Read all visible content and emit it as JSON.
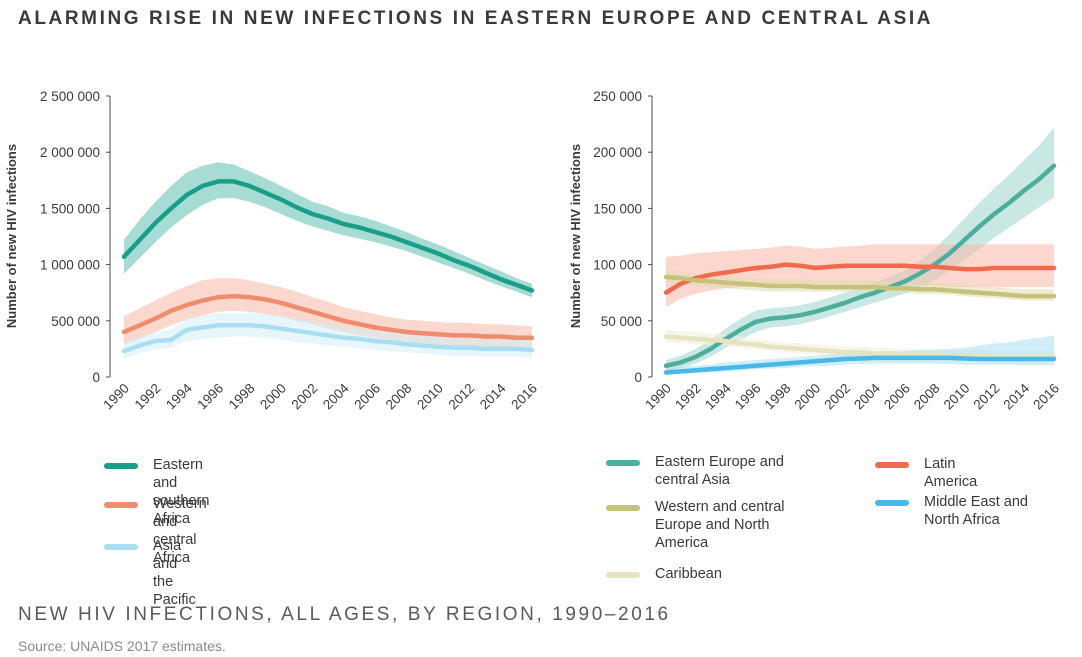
{
  "header": {
    "title": "ALARMING RISE IN NEW INFECTIONS IN EASTERN EUROPE AND CENTRAL ASIA"
  },
  "footer": {
    "subtitle": "NEW HIV INFECTIONS, ALL AGES, BY REGION, 1990–2016",
    "source": "Source: UNAIDS 2017 estimates."
  },
  "chart_data": [
    {
      "type": "line",
      "ylabel": "Number of new HIV infections",
      "ylim": [
        0,
        2500000
      ],
      "yticks": [
        0,
        500000,
        1000000,
        1500000,
        2000000,
        2500000
      ],
      "ytick_labels": [
        "0",
        "500 000",
        "1 000 000",
        "1 500 000",
        "2 000 000",
        "2 500 000"
      ],
      "x": [
        1990,
        1991,
        1992,
        1993,
        1994,
        1995,
        1996,
        1997,
        1998,
        1999,
        2000,
        2001,
        2002,
        2003,
        2004,
        2005,
        2006,
        2007,
        2008,
        2009,
        2010,
        2011,
        2012,
        2013,
        2014,
        2015,
        2016
      ],
      "xticks": [
        1990,
        1992,
        1994,
        1996,
        1998,
        2000,
        2002,
        2004,
        2006,
        2008,
        2010,
        2012,
        2014,
        2016
      ],
      "xtick_labels": [
        "1990",
        "1992",
        "1994",
        "1996",
        "1998",
        "2000",
        "2002",
        "2004",
        "2006",
        "2008",
        "2010",
        "2012",
        "2014",
        "2016"
      ],
      "series": [
        {
          "name": "Eastern and southern Africa",
          "color": "#1a9e8a",
          "band_color": "#5cc0b0",
          "values": [
            1070000,
            1220000,
            1370000,
            1500000,
            1620000,
            1700000,
            1740000,
            1740000,
            1700000,
            1640000,
            1580000,
            1510000,
            1450000,
            1410000,
            1360000,
            1330000,
            1290000,
            1250000,
            1200000,
            1150000,
            1100000,
            1040000,
            990000,
            930000,
            870000,
            820000,
            770000
          ],
          "lower": [
            920000,
            1060000,
            1200000,
            1330000,
            1440000,
            1530000,
            1590000,
            1590000,
            1560000,
            1510000,
            1450000,
            1390000,
            1340000,
            1300000,
            1260000,
            1230000,
            1200000,
            1160000,
            1120000,
            1070000,
            1020000,
            970000,
            920000,
            860000,
            810000,
            760000,
            710000
          ],
          "upper": [
            1220000,
            1400000,
            1560000,
            1700000,
            1820000,
            1880000,
            1910000,
            1890000,
            1830000,
            1770000,
            1700000,
            1630000,
            1560000,
            1520000,
            1460000,
            1430000,
            1390000,
            1340000,
            1290000,
            1230000,
            1180000,
            1120000,
            1060000,
            1000000,
            940000,
            880000,
            830000
          ]
        },
        {
          "name": "Western and central Africa",
          "color": "#f08c6e",
          "band_color": "#f7b8a4",
          "values": [
            400000,
            460000,
            520000,
            590000,
            640000,
            680000,
            710000,
            720000,
            710000,
            690000,
            660000,
            620000,
            580000,
            540000,
            500000,
            470000,
            440000,
            420000,
            400000,
            390000,
            380000,
            370000,
            370000,
            360000,
            360000,
            350000,
            350000
          ],
          "lower": [
            290000,
            340000,
            400000,
            460000,
            510000,
            550000,
            580000,
            590000,
            580000,
            560000,
            540000,
            500000,
            470000,
            430000,
            400000,
            370000,
            350000,
            330000,
            310000,
            300000,
            290000,
            280000,
            270000,
            260000,
            260000,
            250000,
            240000
          ],
          "upper": [
            540000,
            610000,
            680000,
            750000,
            810000,
            860000,
            880000,
            880000,
            860000,
            830000,
            800000,
            760000,
            710000,
            670000,
            620000,
            590000,
            560000,
            530000,
            510000,
            500000,
            490000,
            480000,
            480000,
            470000,
            470000,
            460000,
            450000
          ]
        },
        {
          "name": "Asia and the Pacific",
          "color": "#a9def2",
          "band_color": "#d2eef8",
          "values": [
            230000,
            280000,
            320000,
            330000,
            420000,
            440000,
            460000,
            460000,
            460000,
            450000,
            430000,
            410000,
            390000,
            370000,
            350000,
            340000,
            320000,
            310000,
            290000,
            280000,
            270000,
            260000,
            260000,
            250000,
            250000,
            250000,
            240000
          ],
          "lower": [
            160000,
            210000,
            250000,
            260000,
            320000,
            340000,
            350000,
            360000,
            360000,
            350000,
            330000,
            310000,
            300000,
            280000,
            270000,
            250000,
            240000,
            230000,
            220000,
            210000,
            200000,
            190000,
            190000,
            180000,
            180000,
            180000,
            170000
          ],
          "upper": [
            310000,
            360000,
            400000,
            420000,
            520000,
            550000,
            570000,
            570000,
            570000,
            560000,
            540000,
            520000,
            500000,
            470000,
            450000,
            430000,
            410000,
            400000,
            380000,
            370000,
            360000,
            350000,
            340000,
            340000,
            330000,
            330000,
            320000
          ]
        }
      ]
    },
    {
      "type": "line",
      "ylabel": "Number of new HIV infections",
      "ylim": [
        0,
        250000
      ],
      "yticks": [
        0,
        50000,
        100000,
        150000,
        200000,
        250000
      ],
      "ytick_labels": [
        "0",
        "50 000",
        "100 000",
        "150 000",
        "200 000",
        "250 000"
      ],
      "x": [
        1990,
        1991,
        1992,
        1993,
        1994,
        1995,
        1996,
        1997,
        1998,
        1999,
        2000,
        2001,
        2002,
        2003,
        2004,
        2005,
        2006,
        2007,
        2008,
        2009,
        2010,
        2011,
        2012,
        2013,
        2014,
        2015,
        2016
      ],
      "xticks": [
        1990,
        1992,
        1994,
        1996,
        1998,
        2000,
        2002,
        2004,
        2006,
        2008,
        2010,
        2012,
        2014,
        2016
      ],
      "xtick_labels": [
        "1990",
        "1992",
        "1994",
        "1996",
        "1998",
        "2000",
        "2002",
        "2004",
        "2006",
        "2008",
        "2010",
        "2012",
        "2014",
        "2016"
      ],
      "series": [
        {
          "name": "Eastern Europe and central Asia",
          "color": "#4eae9e",
          "band_color": "#9fd6cc",
          "values": [
            10000,
            13000,
            18000,
            25000,
            34000,
            42000,
            49000,
            52000,
            53000,
            55000,
            58000,
            62000,
            66000,
            71000,
            75000,
            80000,
            85000,
            92000,
            100000,
            110000,
            122000,
            134000,
            145000,
            155000,
            166000,
            176000,
            188000
          ],
          "lower": [
            6000,
            8000,
            12000,
            18000,
            26000,
            33000,
            40000,
            44000,
            45000,
            47000,
            50000,
            54000,
            58000,
            62000,
            66000,
            70000,
            74000,
            80000,
            86000,
            94000,
            104000,
            114000,
            124000,
            133000,
            142000,
            151000,
            160000
          ],
          "upper": [
            15000,
            19000,
            25000,
            33000,
            43000,
            52000,
            59000,
            61000,
            62000,
            64000,
            67000,
            71000,
            75000,
            80000,
            84000,
            89000,
            95000,
            103000,
            114000,
            127000,
            141000,
            155000,
            168000,
            180000,
            193000,
            206000,
            222000
          ]
        },
        {
          "name": "Latin America",
          "color": "#f26a4c",
          "band_color": "#f9b7a7",
          "values": [
            75000,
            83000,
            88000,
            91000,
            93000,
            95000,
            97000,
            98000,
            100000,
            99000,
            97000,
            98000,
            99000,
            99000,
            99000,
            99000,
            99000,
            98000,
            98000,
            97000,
            96000,
            96000,
            97000,
            97000,
            97000,
            97000,
            97000
          ],
          "lower": [
            62000,
            70000,
            74000,
            77000,
            79000,
            80000,
            81000,
            82000,
            83000,
            82000,
            81000,
            81000,
            82000,
            82000,
            82000,
            82000,
            82000,
            81000,
            81000,
            80000,
            80000,
            80000,
            80000,
            80000,
            80000,
            80000,
            80000
          ],
          "upper": [
            107000,
            108000,
            110000,
            111000,
            112000,
            113000,
            114000,
            115000,
            117000,
            116000,
            114000,
            115000,
            116000,
            117000,
            118000,
            118000,
            118000,
            118000,
            118000,
            118000,
            118000,
            118000,
            118000,
            118000,
            118000,
            118000,
            118000
          ]
        },
        {
          "name": "Western and central Europe and North America",
          "color": "#c6c27a",
          "band_color": "#e0ddb0",
          "values": [
            89000,
            88000,
            86000,
            85000,
            84000,
            83000,
            82000,
            81000,
            81000,
            81000,
            80000,
            80000,
            80000,
            80000,
            80000,
            79000,
            79000,
            78000,
            78000,
            77000,
            76000,
            75000,
            74000,
            73000,
            72000,
            72000,
            72000
          ],
          "lower": [
            84000,
            83000,
            81000,
            80000,
            79000,
            78000,
            77000,
            76000,
            76000,
            76000,
            76000,
            76000,
            76000,
            76000,
            76000,
            75000,
            75000,
            74000,
            74000,
            73000,
            72000,
            71000,
            70000,
            69000,
            68000,
            68000,
            68000
          ],
          "upper": [
            95000,
            94000,
            92000,
            91000,
            90000,
            89000,
            88000,
            87000,
            87000,
            87000,
            86000,
            86000,
            86000,
            86000,
            86000,
            85000,
            85000,
            84000,
            84000,
            83000,
            82000,
            81000,
            80000,
            79000,
            78000,
            78000,
            78000
          ]
        },
        {
          "name": "Caribbean",
          "color": "#e6e3bf",
          "band_color": "#f1efd9",
          "values": [
            36000,
            35000,
            34000,
            33000,
            32000,
            30000,
            29000,
            27000,
            26000,
            25000,
            24000,
            23000,
            22000,
            22000,
            21000,
            21000,
            20000,
            20000,
            20000,
            19000,
            19000,
            19000,
            18000,
            18000,
            18000,
            18000,
            18000
          ],
          "lower": [
            31000,
            30000,
            29000,
            28000,
            27000,
            26000,
            25000,
            23000,
            22000,
            21000,
            20000,
            19000,
            18000,
            18000,
            17000,
            17000,
            16000,
            16000,
            16000,
            15000,
            15000,
            15000,
            14000,
            14000,
            14000,
            14000,
            14000
          ],
          "upper": [
            42000,
            41000,
            40000,
            39000,
            38000,
            36000,
            34000,
            32000,
            31000,
            30000,
            29000,
            28000,
            27000,
            27000,
            26000,
            26000,
            25000,
            25000,
            25000,
            24000,
            24000,
            24000,
            23000,
            23000,
            23000,
            23000,
            23000
          ]
        },
        {
          "name": "Middle East and North Africa",
          "color": "#4ab8e6",
          "band_color": "#a9def2",
          "values": [
            4000,
            5000,
            6000,
            7000,
            8000,
            9000,
            10000,
            11000,
            12000,
            13000,
            14000,
            15000,
            16000,
            16500,
            17000,
            17000,
            17000,
            17000,
            17000,
            17000,
            16500,
            16000,
            16000,
            16000,
            16000,
            16000,
            16000
          ],
          "lower": [
            2000,
            3000,
            3500,
            4000,
            5000,
            6000,
            7000,
            7500,
            8000,
            9000,
            9500,
            10000,
            11000,
            11500,
            12000,
            12000,
            12000,
            12000,
            12000,
            11500,
            11000,
            11000,
            11000,
            11000,
            10500,
            10500,
            10500
          ],
          "upper": [
            8000,
            9000,
            10000,
            11000,
            13000,
            14000,
            15000,
            16000,
            17000,
            18000,
            19000,
            20000,
            21000,
            22000,
            22000,
            23000,
            23000,
            24000,
            24000,
            25000,
            26000,
            28000,
            30000,
            31000,
            33000,
            35000,
            37000
          ]
        }
      ]
    }
  ],
  "legends": {
    "left": [
      "Eastern and southern Africa",
      "Western and central Africa",
      "Asia and the Pacific"
    ],
    "right_col1": [
      "Eastern Europe and central Asia",
      "Western and central Europe and North America",
      "Caribbean"
    ],
    "right_col2": [
      "Latin America",
      "Middle East and North Africa"
    ]
  }
}
